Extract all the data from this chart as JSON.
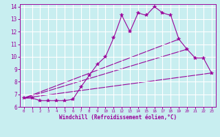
{
  "xlabel": "Windchill (Refroidissement éolien,°C)",
  "xlim": [
    -0.5,
    23.5
  ],
  "ylim": [
    6,
    14.2
  ],
  "xticks": [
    0,
    1,
    2,
    3,
    4,
    5,
    6,
    7,
    8,
    9,
    10,
    11,
    12,
    13,
    14,
    15,
    16,
    17,
    18,
    19,
    20,
    21,
    22,
    23
  ],
  "yticks": [
    6,
    7,
    8,
    9,
    10,
    11,
    12,
    13,
    14
  ],
  "bg_color": "#c8eef0",
  "line_color": "#990099",
  "grid_color": "#ffffff",
  "line1_x": [
    0,
    1,
    2,
    3,
    4,
    5,
    6,
    7,
    8,
    9,
    10,
    11,
    12,
    13,
    14,
    15,
    16,
    17,
    18,
    19,
    20,
    21,
    22,
    23
  ],
  "line1_y": [
    6.7,
    6.7,
    6.5,
    6.5,
    6.5,
    6.5,
    6.6,
    7.6,
    8.5,
    9.4,
    10.0,
    11.5,
    13.3,
    12.0,
    13.5,
    13.3,
    14.0,
    13.5,
    13.3,
    11.4,
    10.6,
    9.9,
    9.9,
    8.7
  ],
  "line2_x": [
    0,
    23
  ],
  "line2_y": [
    6.7,
    8.7
  ],
  "line3_x": [
    0,
    20
  ],
  "line3_y": [
    6.7,
    10.6
  ],
  "line4_x": [
    0,
    19
  ],
  "line4_y": [
    6.7,
    11.4
  ]
}
